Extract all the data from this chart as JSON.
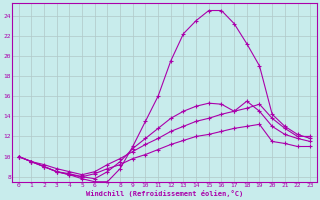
{
  "xlabel": "Windchill (Refroidissement éolien,°C)",
  "bg_color": "#c8ecec",
  "grid_color": "#b0c8c8",
  "line_color": "#aa00aa",
  "xlim": [
    -0.5,
    23.5
  ],
  "ylim": [
    7.5,
    25.2
  ],
  "yticks": [
    8,
    10,
    12,
    14,
    16,
    18,
    20,
    22,
    24
  ],
  "xticks": [
    0,
    1,
    2,
    3,
    4,
    5,
    6,
    7,
    8,
    9,
    10,
    11,
    12,
    13,
    14,
    15,
    16,
    17,
    18,
    19,
    20,
    21,
    22,
    23
  ],
  "line1_x": [
    0,
    1,
    2,
    3,
    4,
    5,
    6,
    7,
    8,
    9,
    10,
    11,
    12,
    13,
    14,
    15,
    16,
    17,
    18,
    19,
    20,
    21,
    22,
    23
  ],
  "line1_y": [
    10.0,
    9.5,
    9.0,
    8.5,
    8.3,
    8.0,
    8.3,
    8.8,
    9.2,
    9.8,
    10.2,
    10.7,
    11.2,
    11.6,
    12.0,
    12.2,
    12.5,
    12.8,
    13.0,
    13.2,
    11.5,
    11.3,
    11.0,
    11.0
  ],
  "line2_x": [
    0,
    1,
    2,
    3,
    4,
    5,
    6,
    7,
    8,
    9,
    10,
    11,
    12,
    13,
    14,
    15,
    16,
    17,
    18,
    19,
    20,
    21,
    22,
    23
  ],
  "line2_y": [
    10.0,
    9.5,
    9.2,
    8.8,
    8.5,
    8.2,
    8.5,
    9.2,
    9.8,
    10.5,
    11.2,
    11.8,
    12.5,
    13.0,
    13.5,
    13.8,
    14.2,
    14.5,
    14.8,
    15.2,
    13.8,
    12.8,
    12.0,
    12.0
  ],
  "line3_x": [
    0,
    1,
    2,
    3,
    4,
    5,
    6,
    7,
    8,
    9,
    10,
    11,
    12,
    13,
    14,
    15,
    16,
    17,
    18,
    19,
    20,
    21,
    22,
    23
  ],
  "line3_y": [
    10.0,
    9.5,
    9.0,
    8.5,
    8.2,
    8.0,
    7.8,
    8.5,
    9.5,
    10.8,
    11.8,
    12.8,
    13.8,
    14.5,
    15.0,
    15.3,
    15.2,
    14.5,
    15.5,
    14.5,
    13.0,
    12.2,
    11.8,
    11.5
  ],
  "line4_x": [
    0,
    1,
    2,
    3,
    4,
    5,
    6,
    7,
    8,
    9,
    10,
    11,
    12,
    13,
    14,
    15,
    16,
    17,
    18,
    19,
    20,
    21,
    22,
    23
  ],
  "line4_y": [
    10.0,
    9.5,
    9.0,
    8.5,
    8.2,
    7.8,
    7.5,
    7.5,
    8.8,
    11.0,
    13.5,
    16.0,
    19.5,
    22.2,
    23.5,
    24.5,
    24.5,
    23.2,
    21.2,
    19.0,
    14.2,
    13.0,
    12.2,
    11.8
  ]
}
